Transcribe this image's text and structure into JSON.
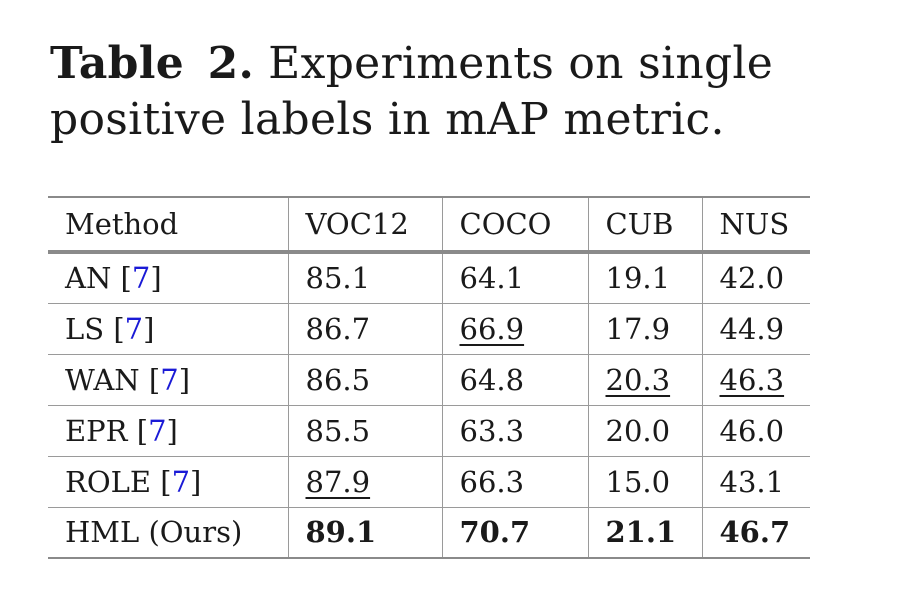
{
  "caption": {
    "label": "Table 2.",
    "text": "Experiments on single positive labels in mAP metric."
  },
  "table": {
    "headers": [
      "Method",
      "VOC12",
      "COCO",
      "CUB",
      "NUS"
    ],
    "rows": [
      {
        "method": "AN",
        "cite": "7",
        "values": [
          "85.1",
          "64.1",
          "19.1",
          "42.0"
        ],
        "underline": [],
        "bold": []
      },
      {
        "method": "LS",
        "cite": "7",
        "values": [
          "86.7",
          "66.9",
          "17.9",
          "44.9"
        ],
        "underline": [
          1
        ],
        "bold": []
      },
      {
        "method": "WAN",
        "cite": "7",
        "values": [
          "86.5",
          "64.8",
          "20.3",
          "46.3"
        ],
        "underline": [
          2,
          3
        ],
        "bold": []
      },
      {
        "method": "EPR",
        "cite": "7",
        "values": [
          "85.5",
          "63.3",
          "20.0",
          "46.0"
        ],
        "underline": [],
        "bold": []
      },
      {
        "method": "ROLE",
        "cite": "7",
        "values": [
          "87.9",
          "66.3",
          "15.0",
          "43.1"
        ],
        "underline": [
          0
        ],
        "bold": []
      },
      {
        "method": "HML (Ours)",
        "cite": "",
        "values": [
          "89.1",
          "70.7",
          "21.1",
          "46.7"
        ],
        "underline": [],
        "bold": [
          0,
          1,
          2,
          3
        ]
      }
    ]
  }
}
